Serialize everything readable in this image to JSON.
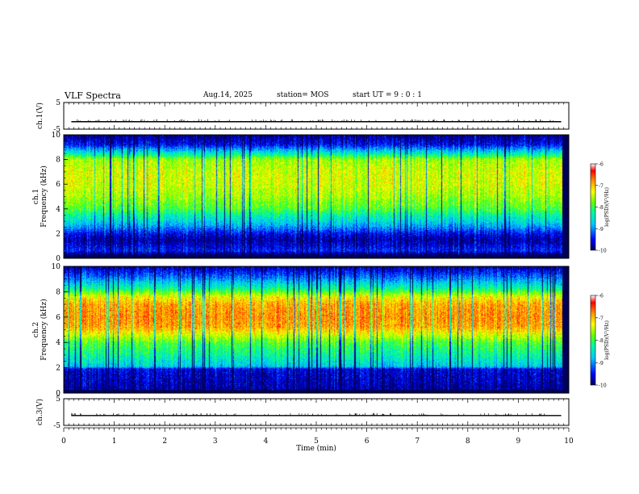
{
  "header": {
    "title": "VLF Spectra",
    "date": "Aug.14, 2025",
    "station": "station= MOS",
    "start_ut": "start UT = 9 : 0 : 1"
  },
  "chart_data": [
    {
      "type": "line",
      "name": "ch1-voltage",
      "ylabel": "ch.1(V)",
      "ylim": [
        -5,
        5
      ],
      "yticks": [
        "5",
        "-5"
      ],
      "xlim": [
        0,
        10
      ],
      "series": [
        {
          "values_note": "",
          "level": -2.2
        }
      ]
    },
    {
      "type": "heatmap",
      "name": "ch1-spectrogram",
      "ylabel_top": "ch.1",
      "ylabel": "Frequency (kHz)",
      "ylim": [
        0,
        10
      ],
      "yticks": [
        "0",
        "2",
        "4",
        "6",
        "8",
        "10"
      ],
      "xlim": [
        0,
        10
      ],
      "colorbar": {
        "label": "log(PSD)(V²/Hz)",
        "range": [
          -10,
          -6
        ],
        "ticks": [
          "-6",
          "-7",
          "-8",
          "-9",
          "-10"
        ]
      },
      "profile_khz": [
        0.3,
        0.6,
        1.0,
        1.5,
        2.0,
        2.5,
        3.0,
        3.5,
        4,
        5,
        6,
        7,
        8,
        8.6,
        9.2,
        10
      ],
      "profile_log_psd": [
        -10,
        -9.4,
        -9.6,
        -9.8,
        -9.5,
        -9.0,
        -8.6,
        -8.3,
        -7.9,
        -7.6,
        -7.4,
        -7.4,
        -7.6,
        -8.6,
        -9.5,
        -9.9
      ]
    },
    {
      "type": "heatmap",
      "name": "ch2-spectrogram",
      "ylabel_top": "ch.2",
      "ylabel": "Frequency (kHz)",
      "ylim": [
        0,
        10
      ],
      "yticks": [
        "0",
        "2",
        "4",
        "6",
        "8",
        "10"
      ],
      "xlim": [
        0,
        10
      ],
      "colorbar": {
        "label": "log(PSD)(V²/Hz)",
        "range": [
          -10,
          -6
        ],
        "ticks": [
          "-6",
          "-7",
          "-8",
          "-9",
          "-10"
        ]
      },
      "profile_khz": [
        0.3,
        1.0,
        1.9,
        2.1,
        3.0,
        4.0,
        4.6,
        5.2,
        6.0,
        7.0,
        7.6,
        8.2,
        9.0,
        10
      ],
      "profile_log_psd": [
        -9.8,
        -9.7,
        -9.6,
        -8.7,
        -8.3,
        -7.9,
        -7.4,
        -6.9,
        -6.8,
        -6.9,
        -7.3,
        -8.2,
        -9.0,
        -9.8
      ]
    },
    {
      "type": "line",
      "name": "ch3-voltage",
      "ylabel": "ch.3(V)",
      "ylim": [
        -5,
        5
      ],
      "yticks": [
        "5",
        "-5"
      ],
      "xlim": [
        0,
        10
      ],
      "series": [
        {
          "values_note": "",
          "level": -1.3
        }
      ]
    }
  ],
  "xaxis": {
    "label": "Time (min)",
    "range": [
      0,
      10
    ],
    "ticks": [
      "0",
      "1",
      "2",
      "3",
      "4",
      "5",
      "6",
      "7",
      "8",
      "9",
      "10"
    ],
    "data_end_min": 9.85
  },
  "colors": {
    "colormap": [
      "#00005a",
      "#0000ff",
      "#00c8ff",
      "#00ff96",
      "#64ff00",
      "#ffff00",
      "#ff9600",
      "#ff0000",
      "#ffffff"
    ],
    "trace": "#000000"
  }
}
